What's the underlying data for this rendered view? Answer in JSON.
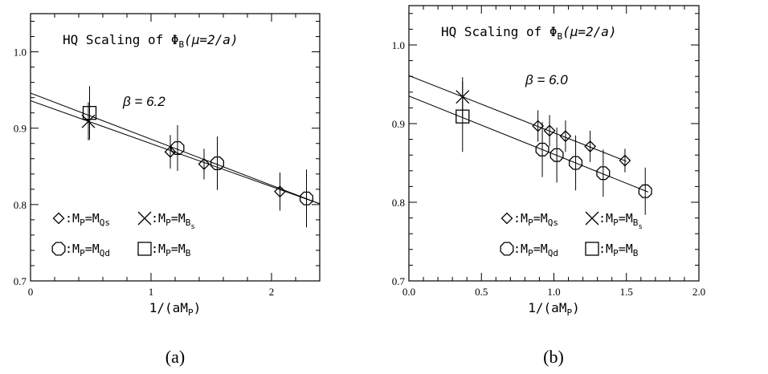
{
  "figure_labels": [
    "(a)",
    "(b)"
  ],
  "chart_data": [
    {
      "type": "scatter",
      "title": "HQ Scaling of ΦB(μ=2/a)",
      "title_parts": {
        "pre": "HQ Scaling of Φ",
        "sub": "B",
        "post": "(μ=2/a)"
      },
      "annotation": "β  =  6.2",
      "xlabel": "1/(aMP)",
      "xlabel_parts": {
        "pre": "1/(aM",
        "sub": "P",
        "post": ")"
      },
      "ylabel": "",
      "xlim": [
        0,
        2.4
      ],
      "ylim": [
        0.7,
        1.05
      ],
      "xticks": [
        0,
        1,
        2
      ],
      "xtick_labels": [
        "0",
        "1",
        "2"
      ],
      "yticks": [
        0.7,
        0.8,
        0.9,
        1.0
      ],
      "ytick_labels": [
        "0.7",
        "0.8",
        "0.9",
        "1.0"
      ],
      "grid": false,
      "legend_position": "bottom-left",
      "legend": [
        {
          "symbol": "diamond",
          "label": "MP=MQs",
          "parts": [
            [
              "M",
              ""
            ],
            [
              "P",
              "sub"
            ],
            [
              "=M",
              ""
            ],
            [
              "Qs",
              "sub"
            ]
          ]
        },
        {
          "symbol": "cross",
          "label": "MP=MBs",
          "parts": [
            [
              "M",
              ""
            ],
            [
              "P",
              "sub"
            ],
            [
              "=M",
              ""
            ],
            [
              "B",
              "sub"
            ],
            [
              "s",
              "subsub"
            ]
          ]
        },
        {
          "symbol": "octagon",
          "label": "MP=MQd",
          "parts": [
            [
              "M",
              ""
            ],
            [
              "P",
              "sub"
            ],
            [
              "=M",
              ""
            ],
            [
              "Qd",
              "sub"
            ]
          ]
        },
        {
          "symbol": "square",
          "label": "MP=MB",
          "parts": [
            [
              "M",
              ""
            ],
            [
              "P",
              "sub"
            ],
            [
              "=M",
              ""
            ],
            [
              "B",
              "sub"
            ]
          ]
        }
      ],
      "series": [
        {
          "symbol": "diamond",
          "points": [
            {
              "x": 1.16,
              "y": 0.869,
              "err": 0.022
            },
            {
              "x": 1.44,
              "y": 0.853,
              "err": 0.02
            },
            {
              "x": 2.07,
              "y": 0.817,
              "err": 0.025
            }
          ]
        },
        {
          "symbol": "octagon",
          "points": [
            {
              "x": 1.22,
              "y": 0.874,
              "err": 0.03
            },
            {
              "x": 1.55,
              "y": 0.854,
              "err": 0.035
            },
            {
              "x": 2.29,
              "y": 0.808,
              "err": 0.038
            }
          ]
        },
        {
          "symbol": "cross",
          "points": [
            {
              "x": 0.48,
              "y": 0.909,
              "err": 0.025
            }
          ]
        },
        {
          "symbol": "square",
          "points": [
            {
              "x": 0.49,
              "y": 0.92,
              "err": 0.035
            }
          ]
        }
      ],
      "fit_lines": [
        {
          "x": [
            0,
            2.4
          ],
          "y": [
            0.946,
            0.801
          ]
        },
        {
          "x": [
            0,
            2.4
          ],
          "y": [
            0.936,
            0.801
          ]
        }
      ]
    },
    {
      "type": "scatter",
      "title": "HQ Scaling of ΦB(μ=2/a)",
      "title_parts": {
        "pre": "HQ Scaling of Φ",
        "sub": "B",
        "post": "(μ=2/a)"
      },
      "annotation": "β  =  6.0",
      "xlabel": "1/(aMP)",
      "xlabel_parts": {
        "pre": "1/(aM",
        "sub": "P",
        "post": ")"
      },
      "ylabel": "",
      "xlim": [
        0,
        2.0
      ],
      "ylim": [
        0.7,
        1.05
      ],
      "xticks": [
        0,
        0.5,
        1.0,
        1.5,
        2.0
      ],
      "xtick_labels": [
        "0.0",
        "0.5",
        "1.0",
        "1.5",
        "2.0"
      ],
      "yticks": [
        0.7,
        0.8,
        0.9,
        1.0
      ],
      "ytick_labels": [
        "0.7",
        "0.8",
        "0.9",
        "1.0"
      ],
      "grid": false,
      "legend_position": "bottom-left",
      "legend": [
        {
          "symbol": "diamond",
          "label": "MP=MQs",
          "parts": [
            [
              "M",
              ""
            ],
            [
              "P",
              "sub"
            ],
            [
              "=M",
              ""
            ],
            [
              "Qs",
              "sub"
            ]
          ]
        },
        {
          "symbol": "cross",
          "label": "MP=MBs",
          "parts": [
            [
              "M",
              ""
            ],
            [
              "P",
              "sub"
            ],
            [
              "=M",
              ""
            ],
            [
              "B",
              "sub"
            ],
            [
              "s",
              "subsub"
            ]
          ]
        },
        {
          "symbol": "octagon",
          "label": "MP=MQd",
          "parts": [
            [
              "M",
              ""
            ],
            [
              "P",
              "sub"
            ],
            [
              "=M",
              ""
            ],
            [
              "Qd",
              "sub"
            ]
          ]
        },
        {
          "symbol": "square",
          "label": "MP=MB",
          "parts": [
            [
              "M",
              ""
            ],
            [
              "P",
              "sub"
            ],
            [
              "=M",
              ""
            ],
            [
              "B",
              "sub"
            ]
          ]
        }
      ],
      "series": [
        {
          "symbol": "diamond",
          "points": [
            {
              "x": 0.89,
              "y": 0.897,
              "err": 0.02
            },
            {
              "x": 0.97,
              "y": 0.891,
              "err": 0.02
            },
            {
              "x": 1.08,
              "y": 0.884,
              "err": 0.02
            },
            {
              "x": 1.25,
              "y": 0.871,
              "err": 0.02
            },
            {
              "x": 1.49,
              "y": 0.853,
              "err": 0.015
            }
          ]
        },
        {
          "symbol": "octagon",
          "points": [
            {
              "x": 0.92,
              "y": 0.867,
              "err": 0.035
            },
            {
              "x": 1.02,
              "y": 0.86,
              "err": 0.035
            },
            {
              "x": 1.15,
              "y": 0.85,
              "err": 0.035
            },
            {
              "x": 1.34,
              "y": 0.837,
              "err": 0.03
            },
            {
              "x": 1.63,
              "y": 0.814,
              "err": 0.03
            }
          ]
        },
        {
          "symbol": "cross",
          "points": [
            {
              "x": 0.37,
              "y": 0.934,
              "err": 0.025
            }
          ]
        },
        {
          "symbol": "square",
          "points": [
            {
              "x": 0.37,
              "y": 0.909,
              "err": 0.045
            }
          ]
        }
      ],
      "fit_lines": [
        {
          "x": [
            0,
            1.5
          ],
          "y": [
            0.961,
            0.852
          ]
        },
        {
          "x": [
            0,
            1.65
          ],
          "y": [
            0.935,
            0.813
          ]
        }
      ]
    }
  ]
}
